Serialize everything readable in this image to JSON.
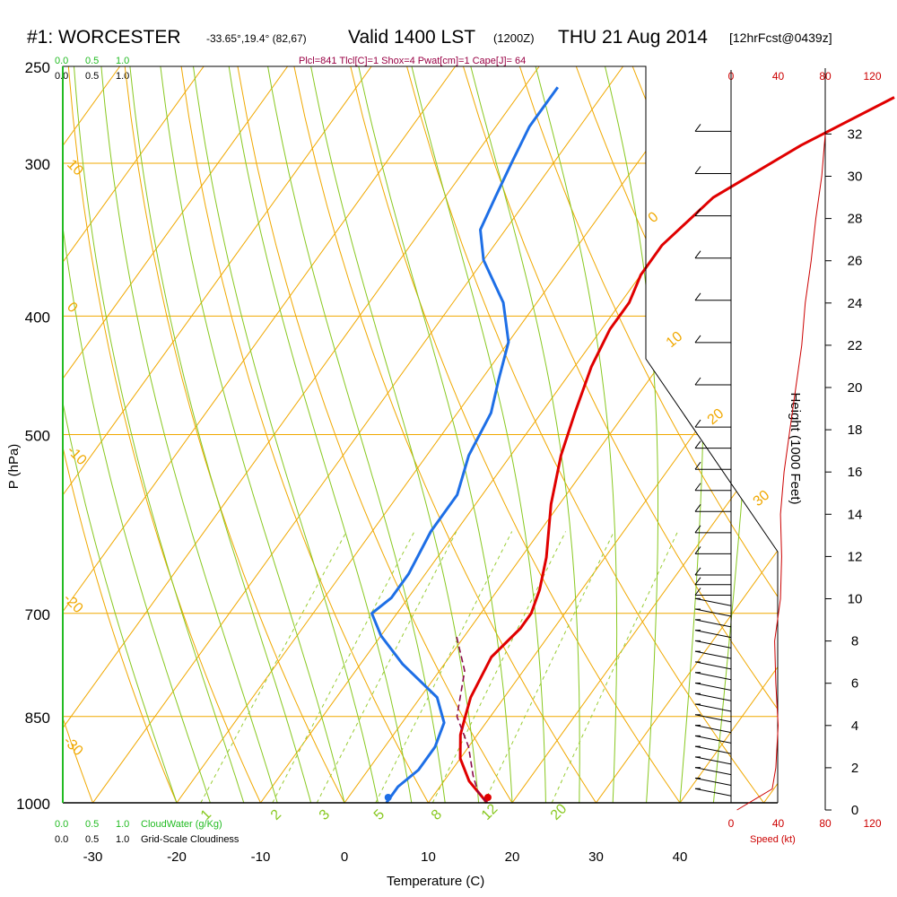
{
  "header": {
    "station": "#1: WORCESTER",
    "coords": "-33.65°,19.4° (82,67)",
    "valid": "Valid 1400 LST",
    "zulu": "(1200Z)",
    "date": "THU 21 Aug 2014",
    "fcst": "[12hrFcst@0439z]",
    "indices": "Plcl=841 Tlcl[C]=1 Shox=4 Pwat[cm]=1 Cape[J]= 64"
  },
  "legend": {
    "cloud_water_scale": [
      "0.0",
      "0.5",
      "1.0"
    ],
    "cloudiness_scale": [
      "0.0",
      "0.5",
      "1.0"
    ],
    "cloud_water_label": "CloudWater (g/Kg)",
    "cloudiness_label": "Grid-Scale Cloudiness",
    "speed_label": "Speed (kt)"
  },
  "colors": {
    "temperature": "#e00000",
    "dewpoint": "#1e6fe6",
    "parcel": "#8b0a4a",
    "isotherm": "#f0a800",
    "mixing_ratio": "#99cc33",
    "moist_adiabat": "#88c820",
    "cloud": "#22bb22",
    "speed": "#cc0000",
    "indices": "#990044"
  },
  "chart_data": {
    "type": "line",
    "title": "#1: WORCESTER -33.65°,19.4° (82,67) Valid 1400 LST (1200Z) THU 21 Aug 2014 [12hrFcst@0439z]",
    "xlabel": "Temperature (C)",
    "ylabel": "P (hPa)",
    "y2label": "Height (1000 Feet)",
    "xticks": [
      "-30",
      "-20",
      "-10",
      "0",
      "10",
      "20",
      "30",
      "40"
    ],
    "pressure_ticks": [
      "250",
      "300",
      "400",
      "500",
      "700",
      "850",
      "1000"
    ],
    "height_ticks": [
      "0",
      "2",
      "4",
      "6",
      "8",
      "10",
      "12",
      "14",
      "16",
      "18",
      "20",
      "22",
      "24",
      "26",
      "28",
      "30",
      "32"
    ],
    "speed_ticks": [
      "0",
      "40",
      "80",
      "120"
    ],
    "xlim": [
      -35,
      45
    ],
    "ylim": [
      1000,
      250
    ],
    "dry_adiabat_labels": [
      "10",
      "0",
      "-10",
      "-20",
      "-30"
    ],
    "moist_adiabat_labels": [
      "0",
      "10",
      "20",
      "30"
    ],
    "mixing_ratio_labels": [
      "1",
      "2",
      "3",
      "5",
      "8",
      "12",
      "20"
    ],
    "series": [
      {
        "name": "Temperature",
        "points": [
          [
            17,
            1000
          ],
          [
            13,
            960
          ],
          [
            10,
            920
          ],
          [
            8,
            880
          ],
          [
            7,
            850
          ],
          [
            6,
            820
          ],
          [
            5,
            760
          ],
          [
            6,
            720
          ],
          [
            6,
            700
          ],
          [
            5,
            670
          ],
          [
            3,
            630
          ],
          [
            -1,
            570
          ],
          [
            -4,
            520
          ],
          [
            -6,
            480
          ],
          [
            -8,
            440
          ],
          [
            -9,
            410
          ],
          [
            -9,
            390
          ],
          [
            -10,
            370
          ],
          [
            -10,
            350
          ],
          [
            -8,
            320
          ],
          [
            -2,
            290
          ],
          [
            5,
            265
          ]
        ]
      },
      {
        "name": "Dewpoint",
        "points": [
          [
            5,
            1000
          ],
          [
            5,
            970
          ],
          [
            6,
            940
          ],
          [
            6,
            900
          ],
          [
            5,
            860
          ],
          [
            2,
            820
          ],
          [
            -5,
            770
          ],
          [
            -10,
            730
          ],
          [
            -13,
            700
          ],
          [
            -12,
            680
          ],
          [
            -12,
            650
          ],
          [
            -13,
            600
          ],
          [
            -13,
            560
          ],
          [
            -15,
            520
          ],
          [
            -16,
            480
          ],
          [
            -18,
            450
          ],
          [
            -20,
            420
          ],
          [
            -24,
            390
          ],
          [
            -30,
            360
          ],
          [
            -33,
            340
          ],
          [
            -34,
            320
          ],
          [
            -35,
            300
          ],
          [
            -36,
            280
          ],
          [
            -36,
            260
          ]
        ]
      },
      {
        "name": "Parcel",
        "points": [
          [
            17,
            1000
          ],
          [
            15,
            980
          ],
          [
            13,
            950
          ],
          [
            10,
            900
          ],
          [
            6,
            850
          ],
          [
            3,
            780
          ],
          [
            -1,
            730
          ]
        ]
      }
    ],
    "surface_temperature": 17,
    "surface_dewpoint": 5,
    "wind_speed_profile_kt": [
      [
        0,
        5
      ],
      [
        1,
        35
      ],
      [
        2,
        38
      ],
      [
        4,
        40
      ],
      [
        6,
        38
      ],
      [
        8,
        37
      ],
      [
        10,
        42
      ],
      [
        12,
        43
      ],
      [
        14,
        42
      ],
      [
        16,
        45
      ],
      [
        18,
        50
      ],
      [
        20,
        55
      ],
      [
        22,
        60
      ],
      [
        24,
        63
      ],
      [
        26,
        68
      ],
      [
        28,
        72
      ],
      [
        30,
        77
      ],
      [
        32,
        80
      ]
    ]
  }
}
